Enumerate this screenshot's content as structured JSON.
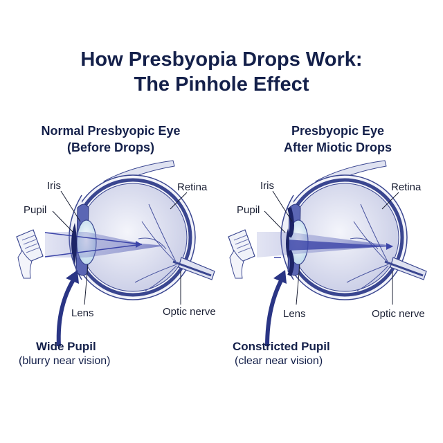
{
  "title": {
    "line1": "How Presbyopia Drops Work:",
    "line2": "The Pinhole Effect"
  },
  "panels": [
    {
      "heading1": "Normal Presbyopic Eye",
      "heading2": "(Before Drops)",
      "labels": {
        "iris": "Iris",
        "pupil": "Pupil",
        "retina": "Retina",
        "lens": "Lens",
        "optic_nerve": "Optic nerve"
      },
      "caption_bold": "Wide Pupil",
      "caption": "(blurry near vision)",
      "pupil_state": "wide"
    },
    {
      "heading1": "Presbyopic Eye",
      "heading2": "After Miotic Drops",
      "labels": {
        "iris": "Iris",
        "pupil": "Pupil",
        "retina": "Retina",
        "lens": "Lens",
        "optic_nerve": "Optic nerve"
      },
      "caption_bold": "Constricted Pupil",
      "caption": "(clear near vision)",
      "pupil_state": "constricted"
    }
  ],
  "colors": {
    "navy": "#14204a",
    "eye_outline": "#3a4690",
    "eye_fill": "#e4e7f4",
    "beam": "#3b44a8"
  }
}
